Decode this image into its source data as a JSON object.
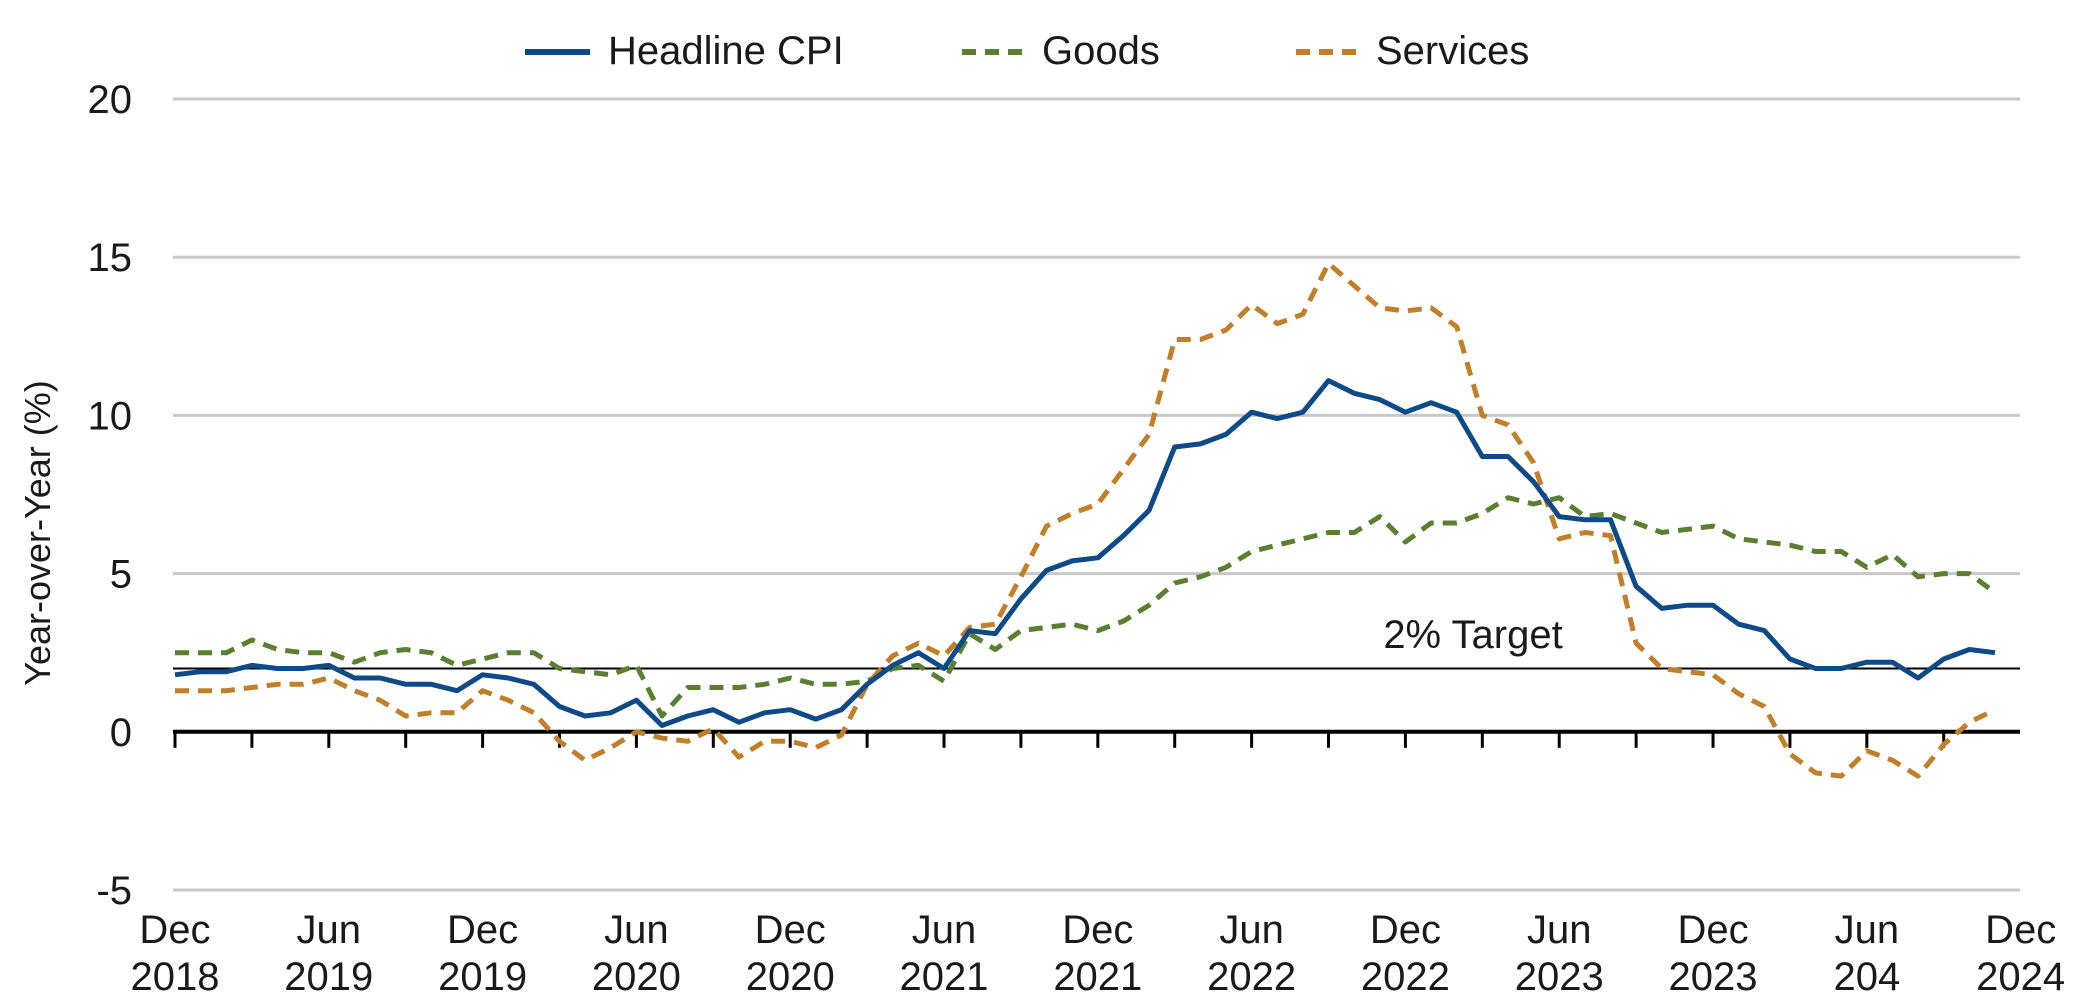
{
  "chart_data": {
    "type": "line",
    "ylabel": "Year-over-Year (%)",
    "ylim": [
      -5,
      20
    ],
    "yticks": [
      -5,
      0,
      5,
      10,
      15,
      20
    ],
    "grid": true,
    "legend_position": "top-center",
    "x_tick_labels": [
      {
        "month": "Dec",
        "year": "2018"
      },
      {
        "month": "Jun",
        "year": "2019"
      },
      {
        "month": "Dec",
        "year": "2019"
      },
      {
        "month": "Jun",
        "year": "2020"
      },
      {
        "month": "Dec",
        "year": "2020"
      },
      {
        "month": "Jun",
        "year": "2021"
      },
      {
        "month": "Dec",
        "year": "2021"
      },
      {
        "month": "Jun",
        "year": "2022"
      },
      {
        "month": "Dec",
        "year": "2022"
      },
      {
        "month": "Jun",
        "year": "2023"
      },
      {
        "month": "Dec",
        "year": "2023"
      },
      {
        "month": "Jun",
        "year": "204"
      },
      {
        "month": "Dec",
        "year": "2024"
      }
    ],
    "reference_line": {
      "value": 2,
      "label": "2% Target"
    },
    "series": [
      {
        "name": "Headline CPI",
        "color": "#0e4a87",
        "style": "solid",
        "values": [
          1.8,
          1.9,
          1.9,
          2.1,
          2.0,
          2.0,
          2.1,
          1.7,
          1.7,
          1.5,
          1.5,
          1.3,
          1.8,
          1.7,
          1.5,
          0.8,
          0.5,
          0.6,
          1.0,
          0.2,
          0.5,
          0.7,
          0.3,
          0.6,
          0.7,
          0.4,
          0.7,
          1.5,
          2.1,
          2.5,
          2.0,
          3.2,
          3.1,
          4.2,
          5.1,
          5.4,
          5.5,
          6.2,
          7.0,
          9.0,
          9.1,
          9.4,
          10.1,
          9.9,
          10.1,
          11.1,
          10.7,
          10.5,
          10.1,
          10.4,
          10.1,
          8.7,
          8.7,
          7.9,
          6.8,
          6.7,
          6.7,
          4.6,
          3.9,
          4.0,
          4.0,
          3.4,
          3.2,
          2.3,
          2.0,
          2.0,
          2.2,
          2.2,
          1.7,
          2.3,
          2.6,
          2.5
        ]
      },
      {
        "name": "Goods",
        "color": "#5a7f31",
        "style": "dashed",
        "values": [
          2.5,
          2.5,
          2.5,
          2.9,
          2.6,
          2.5,
          2.5,
          2.2,
          2.5,
          2.6,
          2.5,
          2.1,
          2.3,
          2.5,
          2.5,
          2.0,
          1.9,
          1.8,
          2.1,
          0.5,
          1.4,
          1.4,
          1.4,
          1.5,
          1.7,
          1.5,
          1.5,
          1.6,
          2.0,
          2.1,
          1.6,
          3.1,
          2.6,
          3.2,
          3.3,
          3.4,
          3.2,
          3.5,
          4.0,
          4.7,
          4.9,
          5.2,
          5.7,
          5.9,
          6.1,
          6.3,
          6.3,
          6.8,
          6.0,
          6.6,
          6.6,
          6.9,
          7.4,
          7.2,
          7.4,
          6.8,
          6.9,
          6.6,
          6.3,
          6.4,
          6.5,
          6.1,
          6.0,
          5.9,
          5.7,
          5.7,
          5.2,
          5.6,
          4.9,
          5.0,
          5.0,
          4.4
        ]
      },
      {
        "name": "Services",
        "color": "#c17f2a",
        "style": "dashed",
        "values": [
          1.3,
          1.3,
          1.3,
          1.4,
          1.5,
          1.5,
          1.7,
          1.3,
          1.0,
          0.5,
          0.6,
          0.6,
          1.3,
          1.0,
          0.6,
          -0.3,
          -0.9,
          -0.5,
          0.0,
          -0.2,
          -0.3,
          0.1,
          -0.8,
          -0.3,
          -0.3,
          -0.5,
          -0.1,
          1.5,
          2.4,
          2.8,
          2.4,
          3.3,
          3.4,
          4.9,
          6.5,
          6.9,
          7.2,
          8.3,
          9.4,
          12.4,
          12.4,
          12.7,
          13.5,
          12.9,
          13.2,
          14.8,
          14.1,
          13.4,
          13.3,
          13.4,
          12.8,
          10.0,
          9.7,
          8.5,
          6.1,
          6.3,
          6.2,
          2.8,
          2.0,
          1.9,
          1.8,
          1.2,
          0.8,
          -0.7,
          -1.3,
          -1.4,
          -0.6,
          -0.9,
          -1.4,
          -0.4,
          0.3,
          0.7
        ]
      }
    ]
  }
}
